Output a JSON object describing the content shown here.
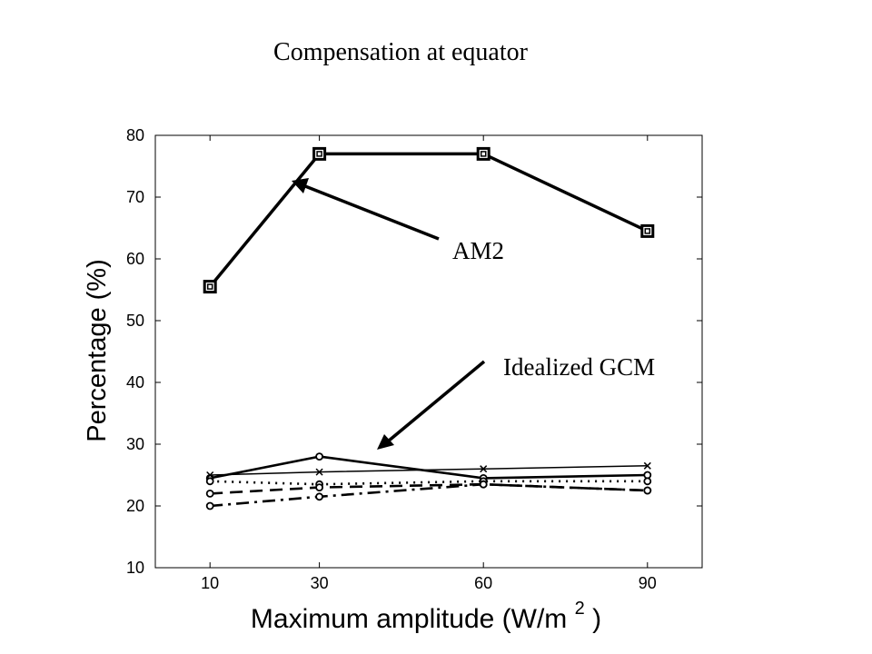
{
  "chart_data": {
    "type": "line",
    "title": "Compensation at equator",
    "xlabel": "Maximum amplitude (W/m",
    "xlabel_superscript": "2",
    "xlabel_suffix": ")",
    "ylabel": "Percentage (%)",
    "x": [
      10,
      30,
      60,
      90
    ],
    "xlim": [
      0,
      100
    ],
    "ylim": [
      10,
      80
    ],
    "xticks": [
      10,
      30,
      60,
      90
    ],
    "yticks": [
      10,
      20,
      30,
      40,
      50,
      60,
      70,
      80
    ],
    "grid": false,
    "series": [
      {
        "values": [
          55.5,
          77,
          77,
          64.5
        ],
        "marker": "square",
        "line_style": "solid",
        "color": "#000000"
      },
      {
        "values": [
          24.5,
          28,
          24.5,
          25
        ],
        "marker": "circle",
        "line_style": "solid",
        "color": "#000000"
      },
      {
        "values": [
          25,
          25.5,
          26,
          26.5
        ],
        "marker": "x",
        "line_style": "thin",
        "color": "#000000"
      },
      {
        "values": [
          24,
          23.5,
          24,
          24
        ],
        "marker": "circle",
        "line_style": "dotted",
        "color": "#000000"
      },
      {
        "values": [
          22,
          23,
          23.5,
          22.5
        ],
        "marker": "circle",
        "line_style": "dashed",
        "color": "#000000"
      },
      {
        "values": [
          20,
          21.5,
          23.5,
          22.5
        ],
        "marker": "circle",
        "line_style": "dashdot",
        "color": "#000000"
      }
    ],
    "annotations": [
      {
        "text": "AM2",
        "x": 30,
        "y": 72.5
      },
      {
        "text": "Idealized GCM",
        "x": 40,
        "y": 29
      }
    ]
  }
}
